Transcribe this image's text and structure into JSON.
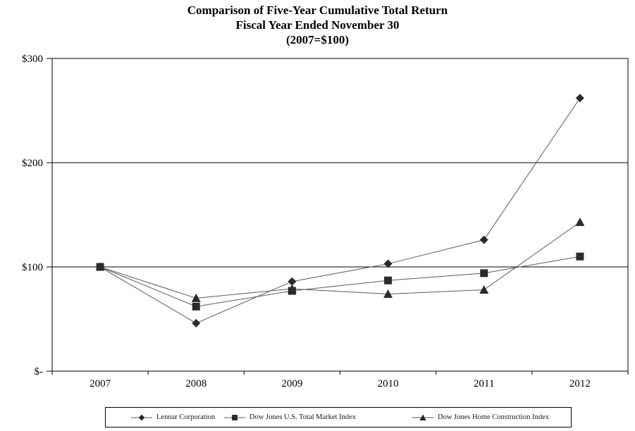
{
  "chart_data": {
    "type": "line",
    "title": "Comparison of Five-Year Cumulative Total Return",
    "subtitle": "Fiscal Year Ended November 30",
    "subtitle2": "(2007=$100)",
    "categories": [
      "2007",
      "2008",
      "2009",
      "2010",
      "2011",
      "2012"
    ],
    "series": [
      {
        "name": "Lennar Corporation",
        "marker": "diamond",
        "values": [
          100,
          46,
          86,
          103,
          126,
          262
        ]
      },
      {
        "name": "Dow Jones U.S. Total Market Index",
        "marker": "square",
        "values": [
          100,
          62,
          77,
          87,
          94,
          110
        ]
      },
      {
        "name": "Dow Jones Home Construction Index",
        "marker": "triangle",
        "values": [
          100,
          70,
          79,
          74,
          78,
          143
        ]
      }
    ],
    "xlabel": "",
    "ylabel": "",
    "ylim": [
      0,
      300
    ],
    "gridlines": [
      100,
      200
    ],
    "grid": "horizontal",
    "y_ticks": [
      {
        "value": 300,
        "label": "$300"
      },
      {
        "value": 200,
        "label": "$200"
      },
      {
        "value": 100,
        "label": "$100"
      },
      {
        "value": 0,
        "label": "$-"
      }
    ],
    "legend_position": "bottom",
    "colors": {
      "background": "#ffffff",
      "axis": "#000000",
      "line": "#595959",
      "marker": "#2b2b2b",
      "text": "#000000"
    }
  }
}
